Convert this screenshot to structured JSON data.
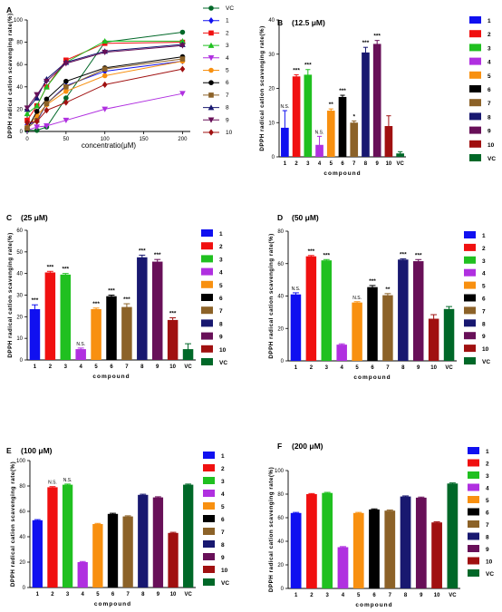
{
  "palette": {
    "1": "#1010f0",
    "2": "#f01010",
    "3": "#20c020",
    "4": "#b030e0",
    "5": "#f89010",
    "6": "#000000",
    "7": "#8c6228",
    "8": "#181870",
    "9": "#681058",
    "10": "#a01010",
    "VC": "#006828"
  },
  "chart_data": [
    {
      "id": "A",
      "panel_label": "A",
      "type": "line",
      "title": "",
      "xlabel": "concentratio(μM)",
      "ylabel": "DPPH radical cation scavenging rate(%)",
      "xlim": [
        0,
        210
      ],
      "ylim": [
        0,
        100
      ],
      "xticks": [
        "0",
        "50",
        "100",
        "150",
        "200"
      ],
      "yticks": [
        "0",
        "20",
        "40",
        "60",
        "80",
        "100"
      ],
      "x": [
        0,
        12.5,
        25,
        50,
        100,
        200
      ],
      "series": [
        {
          "name": "VC",
          "key": "VC",
          "marker": "circle",
          "values": [
            1,
            1,
            4,
            30,
            80,
            89
          ]
        },
        {
          "name": "1",
          "key": "1",
          "marker": "diamond",
          "values": [
            6,
            9,
            25,
            41,
            54,
            63
          ]
        },
        {
          "name": "2",
          "key": "2",
          "marker": "square",
          "values": [
            10,
            23,
            40,
            64,
            79,
            80
          ]
        },
        {
          "name": "3",
          "key": "3",
          "marker": "triangle",
          "values": [
            16,
            23,
            40,
            62,
            81,
            81
          ]
        },
        {
          "name": "4",
          "key": "4",
          "marker": "tri-down",
          "values": [
            1,
            4,
            5,
            10,
            20,
            34
          ]
        },
        {
          "name": "5",
          "key": "5",
          "marker": "circle",
          "values": [
            4,
            14,
            24,
            36,
            50,
            63
          ]
        },
        {
          "name": "6",
          "key": "6",
          "marker": "circle",
          "values": [
            2,
            18,
            29,
            45,
            57,
            67
          ]
        },
        {
          "name": "7",
          "key": "7",
          "marker": "square",
          "values": [
            3,
            10,
            25,
            40,
            56,
            65
          ]
        },
        {
          "name": "8",
          "key": "8",
          "marker": "triangle",
          "values": [
            20,
            30,
            47,
            62,
            72,
            78
          ]
        },
        {
          "name": "9",
          "key": "9",
          "marker": "tri-down",
          "values": [
            21,
            33,
            45,
            61,
            71,
            77
          ]
        },
        {
          "name": "10",
          "key": "10",
          "marker": "diamond",
          "values": [
            8,
            9,
            19,
            26,
            42,
            56
          ]
        }
      ],
      "legend_position": "right"
    },
    {
      "id": "B",
      "panel_label": "B",
      "type": "bar",
      "title": "(12.5 μM)",
      "xlabel": "compound",
      "ylabel": "DPPH radical cation scavenging rate(%)",
      "ylim": [
        0,
        40
      ],
      "yticks": [
        "0",
        "10",
        "20",
        "30",
        "40"
      ],
      "categories": [
        "1",
        "2",
        "3",
        "4",
        "5",
        "6",
        "7",
        "8",
        "9",
        "10",
        "VC"
      ],
      "values": [
        8.5,
        23.5,
        24,
        3.5,
        13.5,
        17.5,
        10,
        30.5,
        33,
        9,
        1
      ],
      "errors": [
        5,
        0.5,
        1.5,
        2.5,
        0.5,
        0.5,
        0.5,
        1.5,
        1,
        3,
        0.5
      ],
      "annotations": [
        "N.S.",
        "***",
        "***",
        "N.S.",
        "**",
        "***",
        "*",
        "***",
        "***",
        "",
        ""
      ],
      "legend_position": "right"
    },
    {
      "id": "C",
      "panel_label": "C",
      "type": "bar",
      "title": "(25 μM)",
      "xlabel": "compound",
      "ylabel": "DPPH radical cation scavenging rate(%)",
      "ylim": [
        0,
        60
      ],
      "yticks": [
        "0",
        "10",
        "20",
        "30",
        "40",
        "50",
        "60"
      ],
      "categories": [
        "1",
        "2",
        "3",
        "4",
        "5",
        "6",
        "7",
        "8",
        "9",
        "10",
        "VC"
      ],
      "values": [
        23.5,
        40.5,
        39.5,
        5,
        23.5,
        29.5,
        24.5,
        47.5,
        45.5,
        18.5,
        5
      ],
      "errors": [
        2,
        0.5,
        0.5,
        0.5,
        0.5,
        0.5,
        1.5,
        1,
        1,
        1,
        2.5
      ],
      "annotations": [
        "***",
        "***",
        "***",
        "N.S.",
        "***",
        "***",
        "***",
        "***",
        "***",
        "***",
        ""
      ],
      "legend_position": "right"
    },
    {
      "id": "D",
      "panel_label": "D",
      "type": "bar",
      "title": "(50 μM)",
      "xlabel": "compound",
      "ylabel": "DPPH radical cation scavenging rate(%)",
      "ylim": [
        0,
        80
      ],
      "yticks": [
        "0",
        "20",
        "40",
        "60",
        "80"
      ],
      "categories": [
        "1",
        "2",
        "3",
        "4",
        "5",
        "6",
        "7",
        "8",
        "9",
        "10",
        "VC"
      ],
      "values": [
        41,
        64.5,
        62,
        10,
        36,
        45.5,
        40.5,
        62.5,
        61.5,
        26,
        32
      ],
      "errors": [
        1,
        0.5,
        0.5,
        0.5,
        0.5,
        1,
        1,
        0.5,
        1,
        2.5,
        1.5
      ],
      "annotations": [
        "N.S.",
        "***",
        "***",
        "",
        "N.S.",
        "***",
        "**",
        "***",
        "***",
        "",
        ""
      ],
      "legend_position": "right"
    },
    {
      "id": "E",
      "panel_label": "E",
      "type": "bar",
      "title": "(100 μM)",
      "xlabel": "compound",
      "ylabel": "DPPH radical cation scavenging rate(%)",
      "ylim": [
        0,
        100
      ],
      "yticks": [
        "0",
        "20",
        "40",
        "60",
        "80",
        "100"
      ],
      "categories": [
        "1",
        "2",
        "3",
        "4",
        "5",
        "6",
        "7",
        "8",
        "9",
        "10",
        "VC"
      ],
      "values": [
        53,
        79,
        81,
        20,
        50,
        58,
        56,
        73,
        71,
        43,
        81
      ],
      "errors": [
        0.5,
        0.5,
        0.5,
        0.5,
        0.5,
        0.5,
        0.5,
        0.5,
        0.5,
        0.5,
        0.5
      ],
      "annotations": [
        "",
        "N.S.",
        "N.S.",
        "",
        "",
        "",
        "",
        "",
        "",
        "",
        ""
      ],
      "legend_position": "right"
    },
    {
      "id": "F",
      "panel_label": "F",
      "type": "bar",
      "title": "(200 μM)",
      "xlabel": "compound",
      "ylabel": "DPPH radical cation scavenging rate(%)",
      "ylim": [
        0,
        100
      ],
      "yticks": [
        "0",
        "20",
        "40",
        "60",
        "80",
        "100"
      ],
      "categories": [
        "1",
        "2",
        "3",
        "4",
        "5",
        "6",
        "7",
        "8",
        "9",
        "10",
        "VC"
      ],
      "values": [
        64,
        80,
        81,
        35,
        64,
        67,
        66,
        78,
        77,
        56,
        89
      ],
      "errors": [
        0.5,
        0.5,
        0.5,
        0.5,
        0.5,
        0.5,
        0.5,
        0.5,
        0.5,
        0.5,
        0.5
      ],
      "annotations": [
        "",
        "",
        "",
        "",
        "",
        "",
        "",
        "",
        "",
        "",
        ""
      ],
      "legend_position": "right"
    }
  ]
}
